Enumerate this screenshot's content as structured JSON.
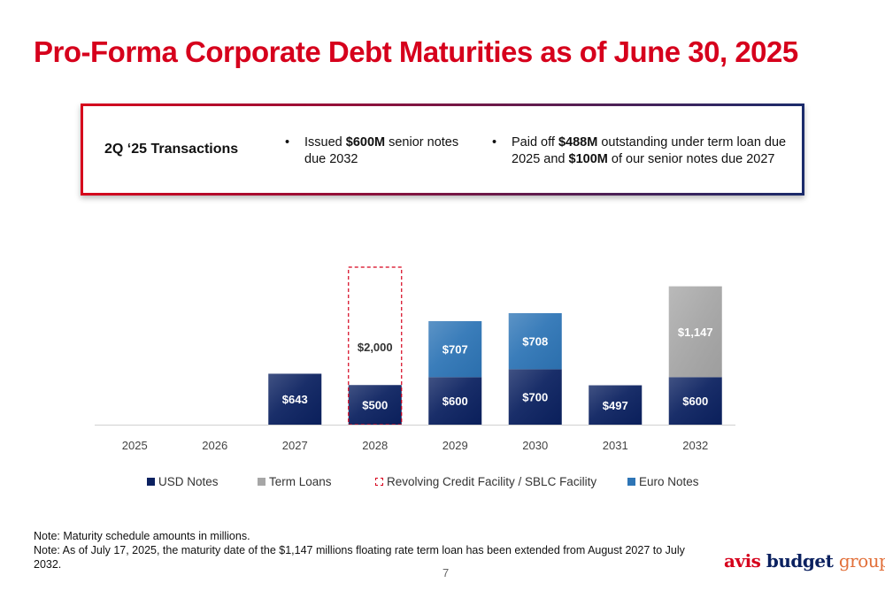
{
  "title": "Pro-Forma Corporate Debt Maturities as of June 30, 2025",
  "transactions": {
    "heading": "2Q ‘25 Transactions",
    "bullet1": {
      "pre": "Issued ",
      "bold": "$600M",
      "post": " senior notes due 2032"
    },
    "bullet2": {
      "pre": "Paid off ",
      "bold1": "$488M",
      "mid": " outstanding under term loan due 2025 and ",
      "bold2": "$100M",
      "post": " of our senior notes due 2027"
    }
  },
  "chart_data": {
    "type": "bar",
    "stacked": true,
    "categories": [
      "2025",
      "2026",
      "2027",
      "2028",
      "2029",
      "2030",
      "2031",
      "2032"
    ],
    "series": [
      {
        "name": "USD Notes",
        "color": "#0b2160",
        "values": [
          0,
          0,
          643,
          500,
          600,
          700,
          497,
          600
        ],
        "labels": [
          "",
          "",
          "$643",
          "$500",
          "$600",
          "$700",
          "$497",
          "$600"
        ]
      },
      {
        "name": "Euro Notes",
        "color": "#2e75b6",
        "values": [
          0,
          0,
          0,
          0,
          707,
          708,
          0,
          0
        ],
        "labels": [
          "",
          "",
          "",
          "",
          "$707",
          "$708",
          "",
          ""
        ]
      },
      {
        "name": "Term Loans",
        "color": "#a6a6a6",
        "values": [
          0,
          0,
          0,
          0,
          0,
          0,
          0,
          1147
        ],
        "labels": [
          "",
          "",
          "",
          "",
          "",
          "",
          "",
          "$1,147"
        ]
      },
      {
        "name": "Revolving Credit Facility / SBLC Facility",
        "color": "#d6001c",
        "style": "dashed-outline",
        "values": [
          0,
          0,
          0,
          2000,
          0,
          0,
          0,
          0
        ],
        "labels": [
          "",
          "",
          "",
          "$2,000",
          "",
          "",
          "",
          ""
        ]
      }
    ],
    "legend": [
      "USD Notes",
      "Term Loans",
      "Revolving Credit Facility / SBLC Facility",
      "Euro Notes"
    ],
    "legend_position": "bottom",
    "grid": false
  },
  "notes": [
    "Note: Maturity schedule amounts in millions.",
    "Note: As of July 17, 2025, the maturity date of the $1,147 millions floating rate term loan has been extended from August 2027 to July 2032."
  ],
  "page_number": "7",
  "logo": {
    "avis": "avis",
    "budget": "budget",
    "group": "group"
  }
}
